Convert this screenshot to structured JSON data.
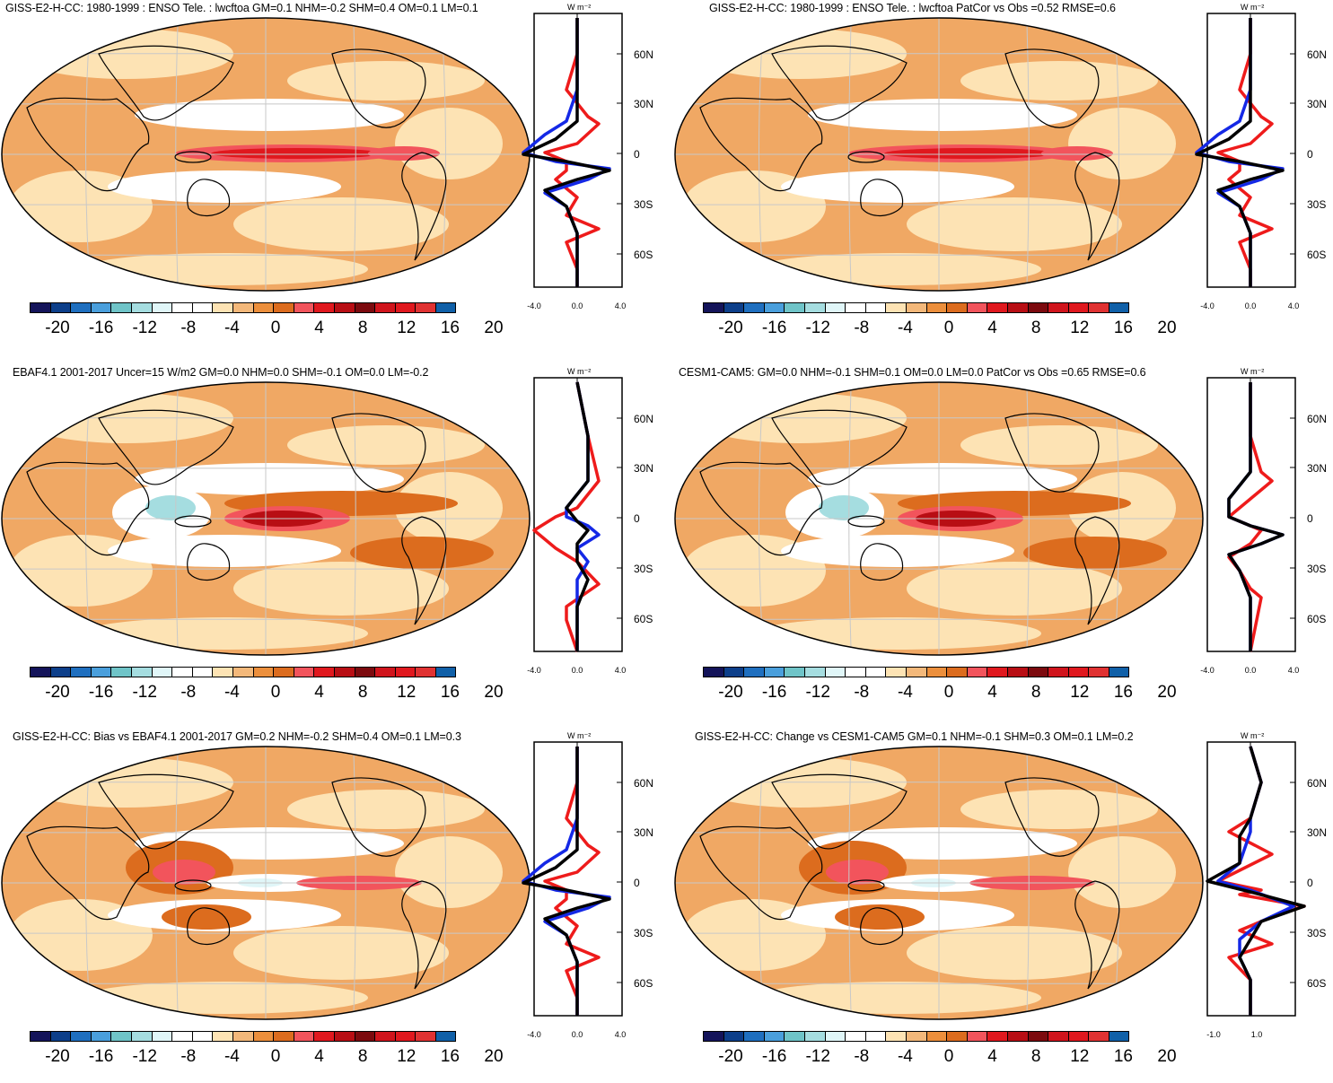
{
  "colorbar": {
    "colors": [
      "#14145a",
      "#0d3f8a",
      "#1f6fbf",
      "#4a9fdc",
      "#6fc4c8",
      "#a5dde0",
      "#e0f6f8",
      "#ffffff",
      "#ffffff",
      "#fde3b4",
      "#f3b87a",
      "#ec8f3c",
      "#dc6c1e",
      "#f2545c",
      "#e0181e",
      "#b80e14",
      "#7c0a0e",
      "#d0141c",
      "#e0181e",
      "#e03232",
      "#1060a8"
    ],
    "labels": [
      "-20",
      "-16",
      "-12",
      "-8",
      "-4",
      "0",
      "4",
      "8",
      "12",
      "16",
      "20"
    ]
  },
  "panels": [
    {
      "id": "p1",
      "title": "GISS-E2-H-CC: 1980-1999 : ENSO Tele. : lwcftoa GM=0.1 NHM=-0.2 SHM=0.4 OM=0.1 LM=0.1",
      "units": "W m⁻²",
      "lat_labels": [
        "60N",
        "30N",
        "0",
        "30S",
        "60S"
      ],
      "x_ticks": [
        "-4.0",
        "0.0",
        "4.0"
      ]
    },
    {
      "id": "p2",
      "title": "GISS-E2-H-CC: 1980-1999 : ENSO Tele. : lwcftoa PatCor vs Obs =0.52 RMSE=0.6",
      "units": "W m⁻²",
      "lat_labels": [
        "60N",
        "30N",
        "0",
        "30S",
        "60S"
      ],
      "x_ticks": [
        "-4.0",
        "0.0",
        "4.0"
      ]
    },
    {
      "id": "p3",
      "title": "EBAF4.1 2001-2017 Uncer=15 W/m2 GM=0.0 NHM=0.0 SHM=-0.1 OM=0.0 LM=-0.2",
      "units": "W m⁻²",
      "lat_labels": [
        "60N",
        "30N",
        "0",
        "30S",
        "60S"
      ],
      "x_ticks": [
        "-4.0",
        "0.0",
        "4.0"
      ]
    },
    {
      "id": "p4",
      "title": "CESM1-CAM5: GM=0.0 NHM=-0.1 SHM=0.1 OM=0.0 LM=0.0 PatCor vs Obs =0.65 RMSE=0.6",
      "units": "W m⁻²",
      "lat_labels": [
        "60N",
        "30N",
        "0",
        "30S",
        "60S"
      ],
      "x_ticks": [
        "-4.0",
        "0.0",
        "4.0"
      ]
    },
    {
      "id": "p5",
      "title": "GISS-E2-H-CC: Bias vs EBAF4.1 2001-2017 GM=0.2 NHM=-0.2 SHM=0.4 OM=0.1 LM=0.3",
      "units": "W m⁻²",
      "lat_labels": [
        "60N",
        "30N",
        "0",
        "30S",
        "60S"
      ],
      "x_ticks": [
        "-4.0",
        "0.0",
        "4.0"
      ]
    },
    {
      "id": "p6",
      "title": "GISS-E2-H-CC: Change vs CESM1-CAM5 GM=0.1 NHM=-0.1 SHM=0.3 OM=0.1 LM=0.2",
      "units": "W m⁻²",
      "lat_labels": [
        "60N",
        "30N",
        "0",
        "30S",
        "60S"
      ],
      "x_ticks": [
        "-1.0",
        "1.0"
      ]
    }
  ]
}
